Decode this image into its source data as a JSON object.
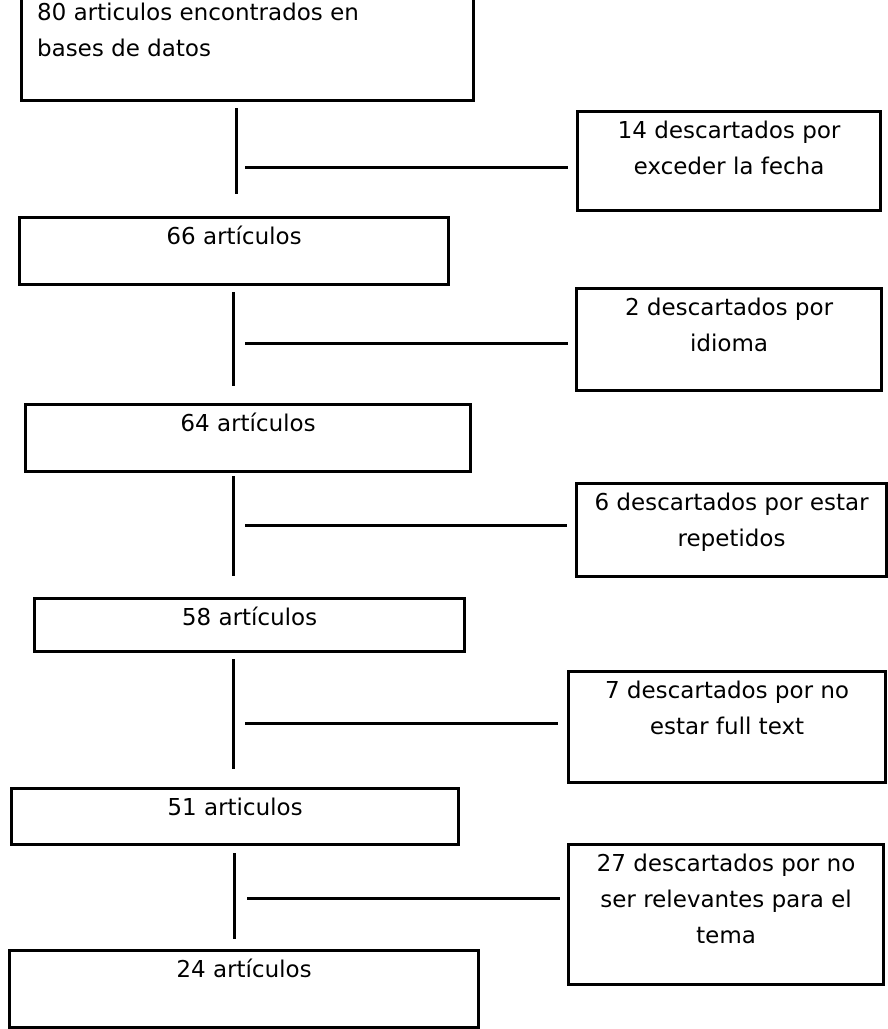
{
  "flow": {
    "main_boxes": [
      "80 articulos encontrados en\nbases de datos",
      "66 artículos",
      "64 artículos",
      "58 artículos",
      "51 articulos",
      "24 artículos"
    ],
    "exclusion_boxes": [
      "14 descartados por\nexceder la fecha",
      "2 descartados por\nidioma",
      "6 descartados por estar\nrepetidos",
      "7 descartados por no\nestar full text",
      "27 descartados por no\nser relevantes para el\ntema"
    ]
  },
  "colors": {
    "stroke": "#000000",
    "background": "#ffffff"
  }
}
